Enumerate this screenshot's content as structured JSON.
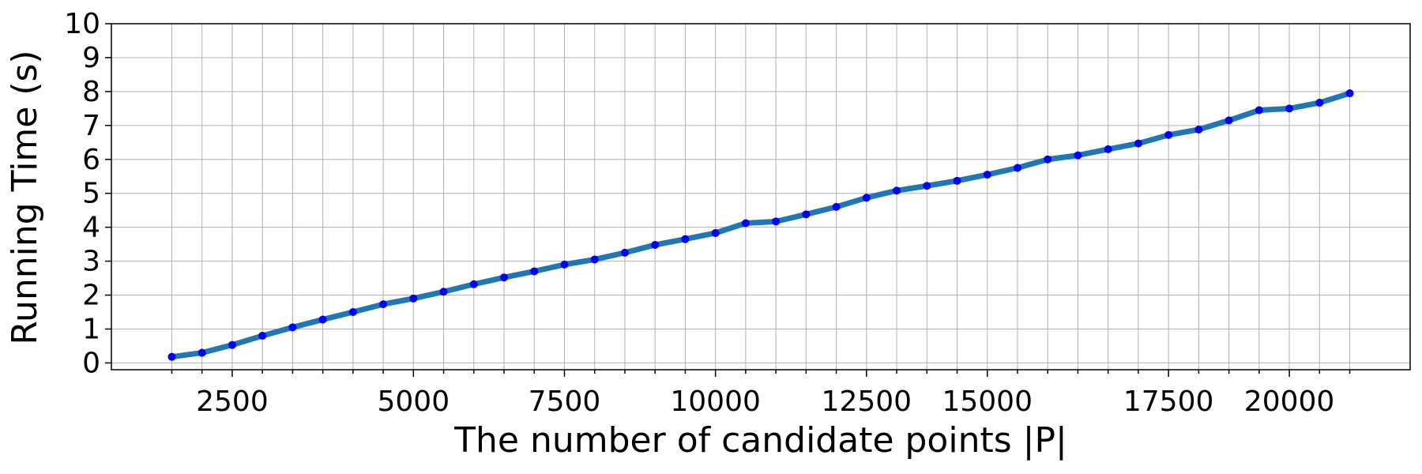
{
  "chart_data": {
    "type": "line",
    "x_label": "The number of candidate points |P|",
    "y_label": "Running Time (s)",
    "categories": [
      null,
      null,
      "2500",
      null,
      null,
      null,
      null,
      null,
      "5000",
      null,
      null,
      null,
      null,
      "7500",
      null,
      null,
      null,
      null,
      "10000",
      null,
      null,
      null,
      null,
      "12500",
      null,
      null,
      null,
      "15000",
      null,
      null,
      null,
      null,
      null,
      "17500",
      null,
      null,
      null,
      "20000",
      null,
      null
    ],
    "values": [
      0.18,
      0.3,
      0.53,
      0.8,
      1.05,
      1.28,
      1.5,
      1.73,
      1.9,
      2.1,
      2.32,
      2.52,
      2.7,
      2.9,
      3.05,
      3.25,
      3.48,
      3.65,
      3.83,
      4.12,
      4.17,
      4.38,
      4.6,
      4.87,
      5.08,
      5.22,
      5.37,
      5.55,
      5.75,
      6.0,
      6.12,
      6.3,
      6.47,
      6.72,
      6.88,
      7.15,
      7.45,
      7.5,
      7.67,
      7.95
    ],
    "color": "#1f77b4",
    "marker_color": "#0000ff",
    "ylim": [
      -0.2,
      10
    ],
    "yticks": [
      0,
      1,
      2,
      3,
      4,
      5,
      6,
      7,
      8,
      9,
      10
    ],
    "grid": true
  }
}
